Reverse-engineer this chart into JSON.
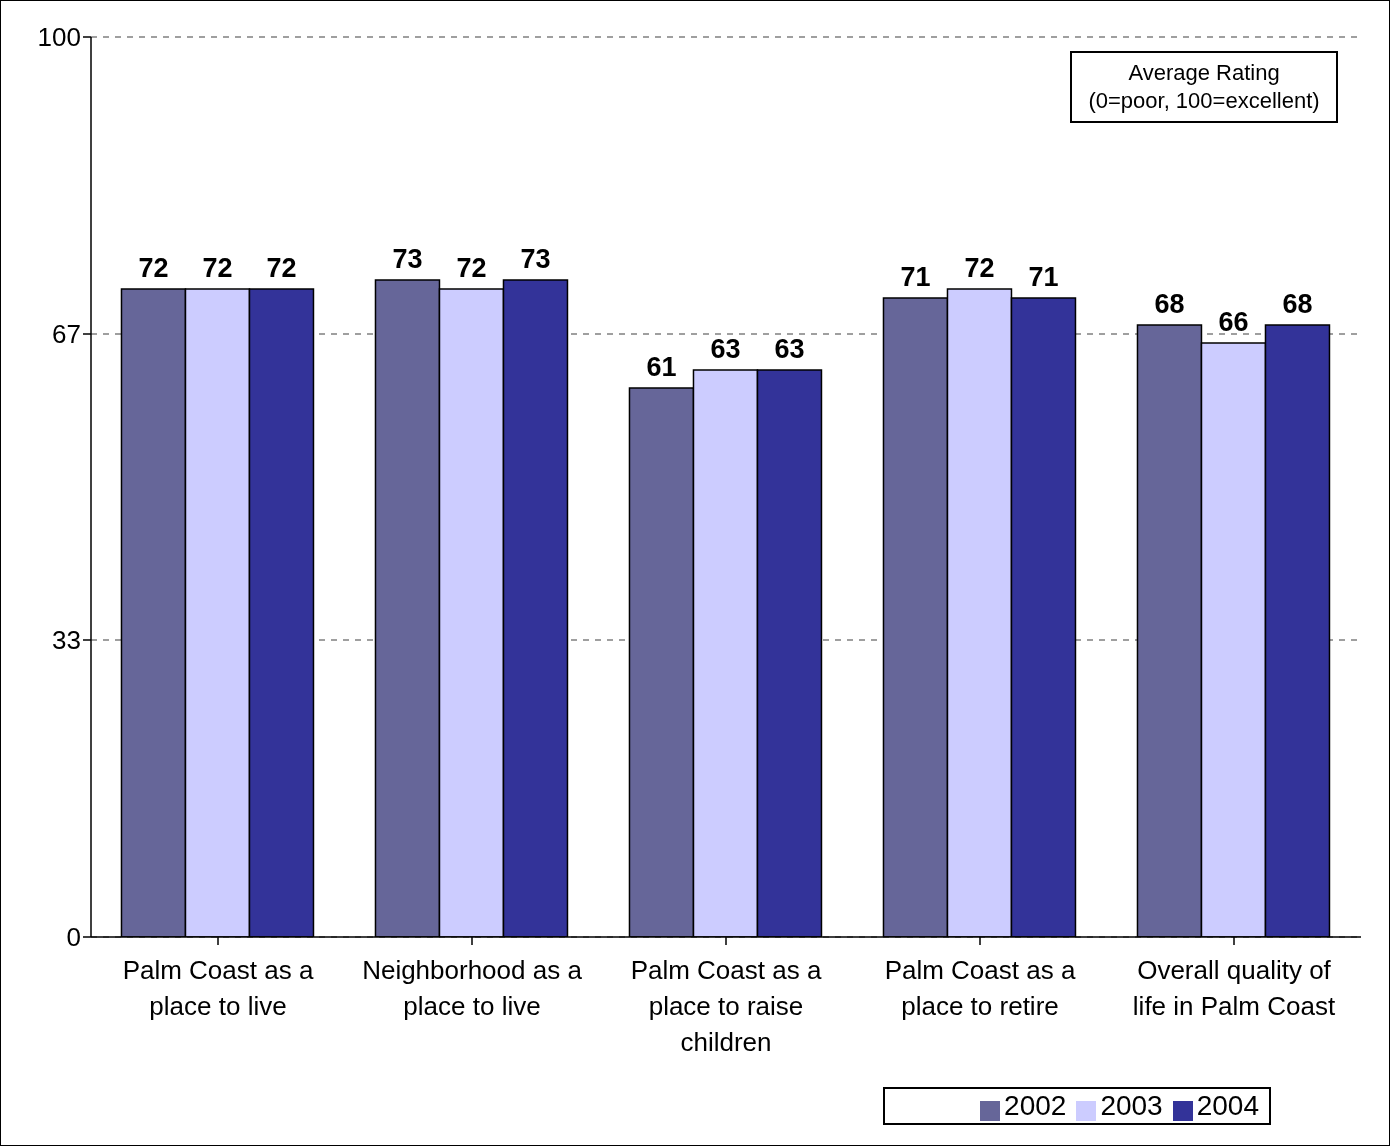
{
  "chart_data": {
    "type": "bar",
    "categories": [
      "Palm Coast as a place to live",
      "Neighborhood as a place to live",
      "Palm Coast as a place to raise children",
      "Palm Coast as a place to retire",
      "Overall quality of life in Palm Coast"
    ],
    "series": [
      {
        "name": "2002",
        "color": "#666699",
        "values": [
          72,
          73,
          61,
          71,
          68
        ]
      },
      {
        "name": "2003",
        "color": "#ccccff",
        "values": [
          72,
          72,
          63,
          72,
          66
        ]
      },
      {
        "name": "2004",
        "color": "#333399",
        "values": [
          72,
          73,
          63,
          71,
          68
        ]
      }
    ],
    "ylim": [
      0,
      100
    ],
    "yticks": [
      0,
      33,
      67,
      100
    ],
    "grid": "y",
    "legend": "bottom right",
    "data_labels": true,
    "annotations": [
      "Average Rating\n(0=poor, 100=excellent)"
    ]
  }
}
